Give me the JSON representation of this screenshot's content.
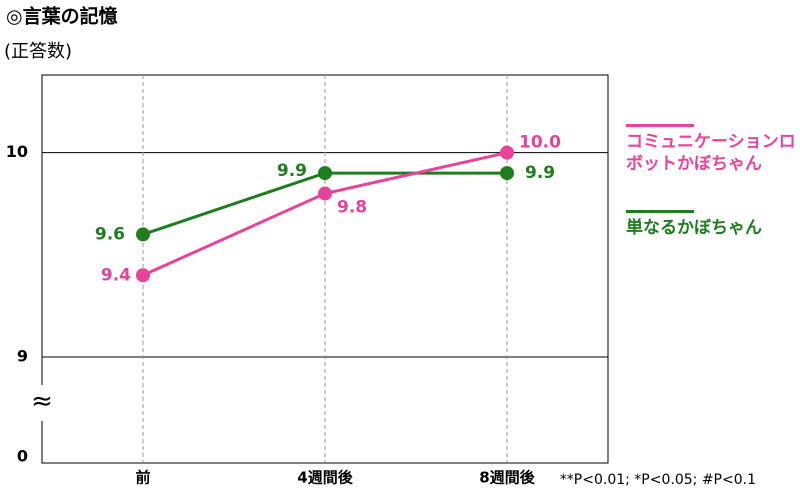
{
  "chart_data": {
    "type": "line",
    "title": "◎言葉の記憶",
    "y_label": "(正答数)",
    "categories": [
      "前",
      "4週間後",
      "8週間後"
    ],
    "series": [
      {
        "name": "コミュニケーションロボットかぼちゃん",
        "color": "#e8439a",
        "values": [
          9.4,
          9.8,
          10
        ],
        "value_labels": [
          "9.4",
          "9.8",
          "10.0"
        ]
      },
      {
        "name": "単なるかぼちゃん",
        "color": "#1e7d1e",
        "values": [
          9.6,
          9.9,
          9.9
        ]
      }
    ],
    "ylim": [
      0,
      10.38
    ],
    "yticks": [
      0,
      9,
      10
    ],
    "axis_break": true,
    "break_symbol": "≈",
    "grid": true,
    "legend": "right",
    "footnote": "**P<0.01; *P<0.05; #P<0.1"
  }
}
